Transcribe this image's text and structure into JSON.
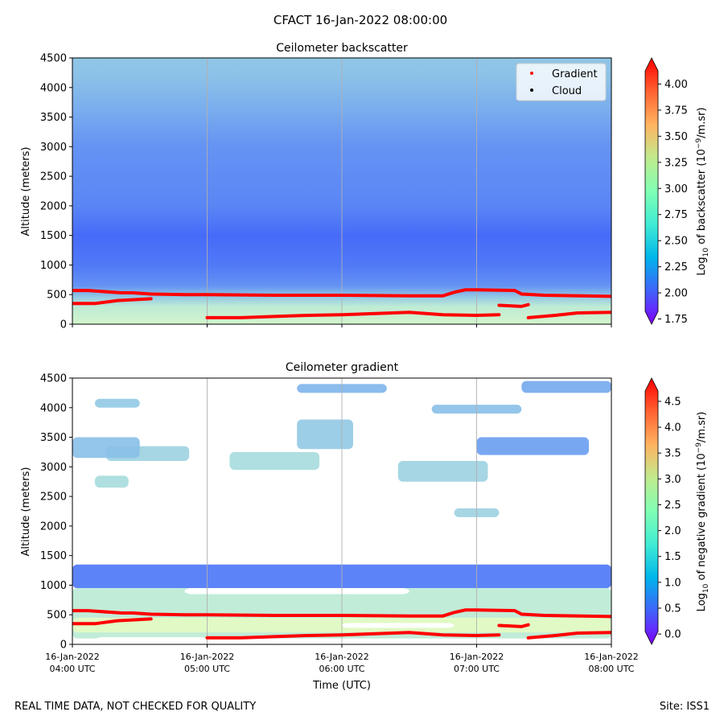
{
  "figure": {
    "title": "CFACT 16-Jan-2022 08:00:00",
    "footer_left": "REAL TIME DATA, NOT CHECKED FOR QUALITY",
    "footer_right": "Site: ISS1"
  },
  "chart_data": [
    {
      "type": "heatmap",
      "title": "Ceilometer backscatter",
      "xlabel": "",
      "ylabel": "Altitude (meters)",
      "xlim": [
        "2022-01-16T04:00",
        "2022-01-16T08:00"
      ],
      "ylim": [
        0,
        4500
      ],
      "yticks": [
        0,
        500,
        1000,
        1500,
        2000,
        2500,
        3000,
        3500,
        4000,
        4500
      ],
      "grid": "vertical lines at each hour",
      "colormap": "rainbow",
      "colorbar": {
        "label": "Log10 of backscatter (10^-9/m.sr)",
        "label_prefix": "Log",
        "label_sub": "10",
        "label_mid": " of backscatter (10",
        "label_sup": "−9",
        "label_suffix": "/m.sr)",
        "range": [
          1.7,
          4.25
        ],
        "ticks": [
          "1.75",
          "2.00",
          "2.25",
          "2.50",
          "2.75",
          "3.00",
          "3.25",
          "3.50",
          "3.75",
          "4.00"
        ],
        "extend": "both"
      },
      "legend": {
        "position": "top-right",
        "entries": [
          {
            "label": "Gradient",
            "color": "#ff0000"
          },
          {
            "label": "Cloud",
            "color": "#000000"
          }
        ]
      },
      "profile": [
        {
          "alt": 0,
          "value": 2.75
        },
        {
          "alt": 300,
          "value": 2.65
        },
        {
          "alt": 450,
          "value": 2.45
        },
        {
          "alt": 650,
          "value": 2.2
        },
        {
          "alt": 1000,
          "value": 2.1
        },
        {
          "alt": 1500,
          "value": 2.05
        },
        {
          "alt": 2000,
          "value": 2.15
        },
        {
          "alt": 3000,
          "value": 2.2
        },
        {
          "alt": 3600,
          "value": 2.3
        },
        {
          "alt": 4200,
          "value": 2.4
        },
        {
          "alt": 4500,
          "value": 2.42
        }
      ],
      "gradient_layers": [
        {
          "name": "upper layer",
          "color": "#ff0000",
          "points": [
            [
              "04:00",
              570
            ],
            [
              "04:07",
              570
            ],
            [
              "04:22",
              530
            ],
            [
              "04:27",
              530
            ],
            [
              "04:35",
              510
            ],
            [
              "04:50",
              500
            ],
            [
              "05:00",
              500
            ],
            [
              "05:30",
              490
            ],
            [
              "06:00",
              490
            ],
            [
              "06:30",
              480
            ],
            [
              "06:45",
              480
            ],
            [
              "06:50",
              540
            ],
            [
              "06:55",
              580
            ],
            [
              "07:00",
              580
            ],
            [
              "07:17",
              570
            ],
            [
              "07:20",
              510
            ],
            [
              "07:30",
              490
            ],
            [
              "08:00",
              470
            ]
          ]
        },
        {
          "name": "lower layer",
          "color": "#ff0000",
          "points": [
            [
              "04:00",
              350
            ],
            [
              "04:10",
              350
            ],
            [
              "04:20",
              400
            ],
            [
              "04:30",
              420
            ],
            [
              "04:35",
              430
            ],
            [
              "05:00",
              110
            ],
            [
              "05:15",
              110
            ],
            [
              "05:30",
              130
            ],
            [
              "05:45",
              150
            ],
            [
              "06:00",
              160
            ],
            [
              "06:15",
              180
            ],
            [
              "06:30",
              200
            ],
            [
              "06:45",
              160
            ],
            [
              "07:00",
              150
            ],
            [
              "07:10",
              160
            ],
            [
              "07:10",
              320
            ],
            [
              "07:20",
              300
            ],
            [
              "07:23",
              330
            ],
            [
              "07:23",
              110
            ],
            [
              "07:35",
              150
            ],
            [
              "07:45",
              190
            ],
            [
              "08:00",
              200
            ]
          ]
        }
      ]
    },
    {
      "type": "heatmap",
      "title": "Ceilometer gradient",
      "xlabel": "Time (UTC)",
      "ylabel": "Altitude (meters)",
      "xlim": [
        "2022-01-16T04:00",
        "2022-01-16T08:00"
      ],
      "ylim": [
        0,
        4500
      ],
      "yticks": [
        0,
        500,
        1000,
        1500,
        2000,
        2500,
        3000,
        3500,
        4000,
        4500
      ],
      "xticks": [
        {
          "date": "16-Jan-2022",
          "time": "04:00 UTC"
        },
        {
          "date": "16-Jan-2022",
          "time": "05:00 UTC"
        },
        {
          "date": "16-Jan-2022",
          "time": "06:00 UTC"
        },
        {
          "date": "16-Jan-2022",
          "time": "07:00 UTC"
        },
        {
          "date": "16-Jan-2022",
          "time": "08:00 UTC"
        }
      ],
      "grid": "vertical lines at each hour",
      "colormap": "rainbow",
      "colorbar": {
        "label": "Log10 of negative gradient (10^-9/m.sr)",
        "label_prefix": "Log",
        "label_sub": "10",
        "label_mid": " of negative gradient (10",
        "label_sup": "−9",
        "label_suffix": "/m.sr)",
        "range": [
          -0.2,
          4.95
        ],
        "ticks": [
          "0.0",
          "0.5",
          "1.0",
          "1.5",
          "2.0",
          "2.5",
          "3.0",
          "3.5",
          "4.0",
          "4.5"
        ],
        "extend": "both"
      },
      "layers": [
        {
          "time_start": "04:00",
          "time_end": "08:00",
          "alt_bottom": 950,
          "alt_top": 1350,
          "value": 0.6
        },
        {
          "time_start": "04:00",
          "time_end": "08:00",
          "alt_bottom": 100,
          "alt_top": 950,
          "value": 1.7
        },
        {
          "time_start": "04:00",
          "time_end": "08:00",
          "alt_bottom": 200,
          "alt_top": 450,
          "value": 2.1
        },
        {
          "time_start": "04:15",
          "time_end": "04:52",
          "alt_bottom": 3100,
          "alt_top": 3350,
          "value": 1.4
        },
        {
          "time_start": "04:00",
          "time_end": "04:30",
          "alt_bottom": 3150,
          "alt_top": 3500,
          "value": 1.2
        },
        {
          "time_start": "05:10",
          "time_end": "05:50",
          "alt_bottom": 2950,
          "alt_top": 3250,
          "value": 1.5
        },
        {
          "time_start": "05:40",
          "time_end": "06:05",
          "alt_bottom": 3300,
          "alt_top": 3800,
          "value": 1.3
        },
        {
          "time_start": "06:25",
          "time_end": "07:05",
          "alt_bottom": 2750,
          "alt_top": 3100,
          "value": 1.4
        },
        {
          "time_start": "07:00",
          "time_end": "07:50",
          "alt_bottom": 3200,
          "alt_top": 3500,
          "value": 0.9
        },
        {
          "time_start": "04:10",
          "time_end": "04:25",
          "alt_bottom": 2650,
          "alt_top": 2850,
          "value": 1.5
        },
        {
          "time_start": "06:40",
          "time_end": "07:20",
          "alt_bottom": 3900,
          "alt_top": 4050,
          "value": 1.2
        },
        {
          "time_start": "07:20",
          "time_end": "08:00",
          "alt_bottom": 4250,
          "alt_top": 4450,
          "value": 1.0
        },
        {
          "time_start": "06:50",
          "time_end": "07:10",
          "alt_bottom": 2150,
          "alt_top": 2300,
          "value": 1.4
        },
        {
          "time_start": "04:10",
          "time_end": "04:30",
          "alt_bottom": 4000,
          "alt_top": 4150,
          "value": 1.3
        },
        {
          "time_start": "05:40",
          "time_end": "06:20",
          "alt_bottom": 4250,
          "alt_top": 4400,
          "value": 1.1
        }
      ],
      "gaps": [
        {
          "time_start": "04:50",
          "time_end": "06:30",
          "alt_bottom": 850,
          "alt_top": 950
        },
        {
          "time_start": "06:00",
          "time_end": "06:50",
          "alt_bottom": 280,
          "alt_top": 360
        },
        {
          "time_start": "04:10",
          "time_end": "05:00",
          "alt_bottom": 0,
          "alt_top": 120
        }
      ],
      "gradient_layers_repeated_from_panel_1": true
    }
  ]
}
